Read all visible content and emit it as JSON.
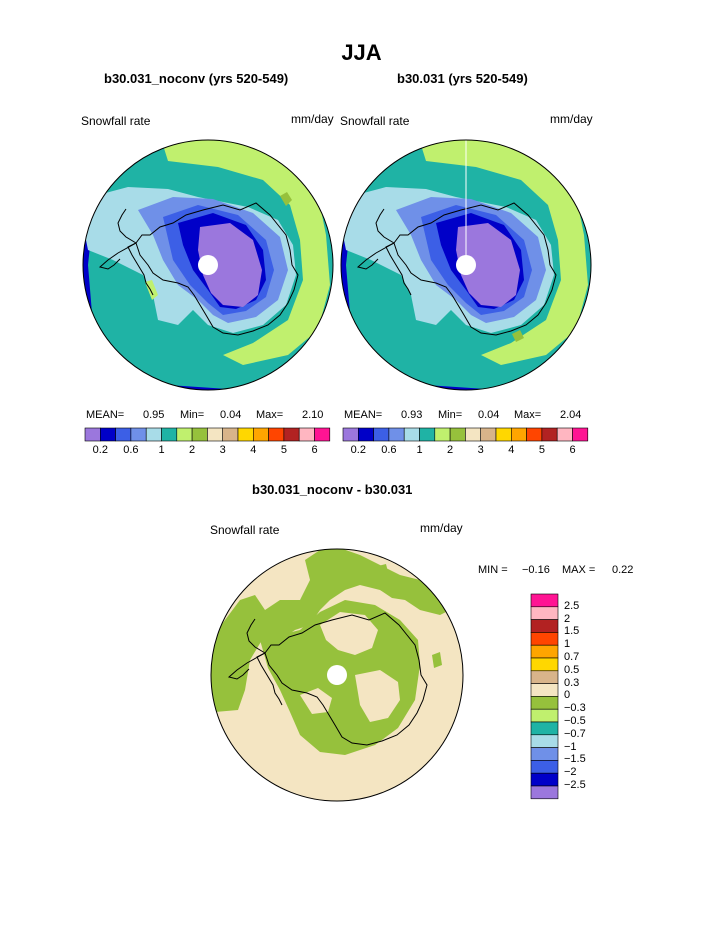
{
  "title": "JJA",
  "colors": {
    "c_lavender": "#9b77dd",
    "c_navy": "#0000c8",
    "c_blue": "#3c5fe6",
    "c_cornflower": "#6f90e8",
    "c_lightblue": "#a8dce8",
    "c_teal": "#1fb3a5",
    "c_lightgreen": "#c0f06e",
    "c_olive": "#96c13c",
    "c_cream": "#f4e5c2",
    "c_tan": "#d8b48a",
    "c_yellow": "#ffd700",
    "c_orange": "#ffa500",
    "c_redorange": "#ff4500",
    "c_crimson": "#b22222",
    "c_pink": "#ffb6c1",
    "c_magenta": "#ff1493"
  },
  "panels": {
    "left": {
      "title": "b30.031_noconv (yrs 520-549)",
      "variable": "Snowfall rate",
      "units": "mm/day",
      "mean_label": "MEAN=",
      "mean": "0.95",
      "min_label": "Min=",
      "min": "0.04",
      "max_label": "Max=",
      "max": "2.10"
    },
    "right": {
      "title": "b30.031 (yrs 520-549)",
      "variable": "Snowfall rate",
      "units": "mm/day",
      "mean_label": "MEAN=",
      "mean": "0.93",
      "min_label": "Min=",
      "min": "0.04",
      "max_label": "Max=",
      "max": "2.04"
    },
    "diff": {
      "title": "b30.031_noconv - b30.031",
      "variable": "Snowfall rate",
      "units": "mm/day",
      "min_label": "MIN =",
      "min": "−0.16",
      "max_label": "MAX =",
      "max": "0.22"
    }
  },
  "horizontal_colorbar": {
    "colors": [
      "c_lavender",
      "c_navy",
      "c_blue",
      "c_cornflower",
      "c_lightblue",
      "c_teal",
      "c_lightgreen",
      "c_olive",
      "c_cream",
      "c_tan",
      "c_yellow",
      "c_orange",
      "c_redorange",
      "c_crimson",
      "c_pink",
      "c_magenta"
    ],
    "tick_labels": [
      "0.2",
      "0.6",
      "1",
      "2",
      "3",
      "4",
      "5",
      "6"
    ]
  },
  "vertical_colorbar": {
    "colors": [
      "c_magenta",
      "c_pink",
      "c_crimson",
      "c_redorange",
      "c_orange",
      "c_yellow",
      "c_tan",
      "c_cream",
      "c_olive",
      "c_lightgreen",
      "c_teal",
      "c_lightblue",
      "c_cornflower",
      "c_blue",
      "c_navy",
      "c_lavender"
    ],
    "tick_labels": [
      "2.5",
      "2",
      "1.5",
      "1",
      "0.7",
      "0.5",
      "0.3",
      "0",
      "−0.3",
      "−0.5",
      "−0.7",
      "−1",
      "−1.5",
      "−2",
      "−2.5"
    ]
  }
}
